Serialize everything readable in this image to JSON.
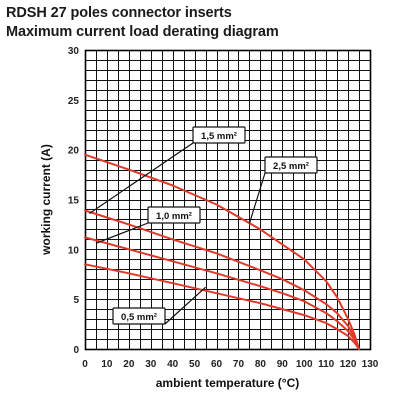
{
  "title": "RDSH 27 poles connector inserts",
  "subtitle": "Maximum current load derating diagram",
  "chart_data": {
    "type": "line",
    "xlabel": "ambient temperature (°C)",
    "ylabel": "working current (A)",
    "xlim": [
      0,
      130
    ],
    "ylim": [
      0,
      30
    ],
    "xticks": [
      "0",
      "10",
      "20",
      "30",
      "40",
      "50",
      "60",
      "70",
      "80",
      "90",
      "100",
      "110",
      "120",
      "130"
    ],
    "yticks": [
      "0",
      "5",
      "10",
      "15",
      "20",
      "25",
      "30"
    ],
    "grid": true,
    "line_color": "#e03a2a",
    "series": [
      {
        "name": "2,5 mm²",
        "x": [
          0,
          20,
          40,
          60,
          80,
          90,
          100,
          110,
          115,
          120,
          123,
          125
        ],
        "y": [
          19.5,
          18.0,
          16.4,
          14.5,
          12.0,
          10.5,
          9.0,
          6.8,
          5.2,
          3.0,
          1.4,
          0
        ]
      },
      {
        "name": "1,5 mm²",
        "x": [
          0,
          20,
          40,
          60,
          80,
          90,
          100,
          110,
          115,
          120,
          123,
          125
        ],
        "y": [
          13.9,
          12.5,
          11.0,
          9.6,
          7.9,
          7.0,
          5.9,
          4.5,
          3.6,
          2.3,
          1.1,
          0
        ]
      },
      {
        "name": "1,0 mm²",
        "x": [
          0,
          20,
          40,
          60,
          80,
          90,
          100,
          110,
          115,
          120,
          123,
          125
        ],
        "y": [
          11.2,
          10.0,
          8.8,
          7.6,
          6.3,
          5.6,
          4.8,
          3.6,
          2.8,
          1.8,
          0.9,
          0
        ]
      },
      {
        "name": "0,5 mm²",
        "x": [
          0,
          20,
          40,
          60,
          80,
          90,
          100,
          110,
          115,
          120,
          123,
          125
        ],
        "y": [
          8.5,
          7.6,
          6.6,
          5.6,
          4.6,
          4.0,
          3.4,
          2.6,
          2.0,
          1.3,
          0.6,
          0
        ]
      }
    ],
    "annotations": [
      {
        "label": "1,5 mm²",
        "series": "1,5 mm²",
        "target": [
          2,
          13.6
        ]
      },
      {
        "label": "2,5 mm²",
        "series": "2,5 mm²",
        "target": [
          75,
          12.6
        ]
      },
      {
        "label": "1,0 mm²",
        "series": "1,0 mm²",
        "target": [
          5,
          10.6
        ]
      },
      {
        "label": "0,5 mm²",
        "series": "0,5 mm²",
        "target": [
          55,
          6.2
        ]
      }
    ]
  }
}
